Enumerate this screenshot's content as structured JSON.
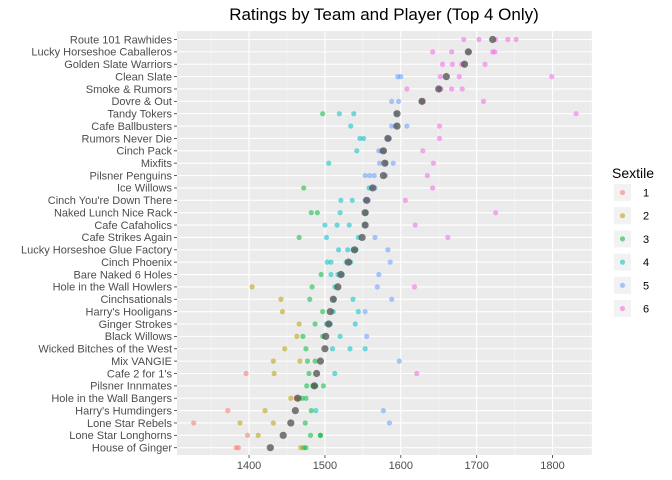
{
  "chart_data": {
    "type": "scatter",
    "title": "Ratings by Team and Player (Top 4 Only)",
    "xlabel": "",
    "ylabel": "",
    "xlim": [
      1305,
      1852
    ],
    "x_ticks": [
      1400,
      1500,
      1600,
      1700,
      1800
    ],
    "x_tick_labels": [
      "1400",
      "1500",
      "1600",
      "1700",
      "1800"
    ],
    "grid": true,
    "legend": {
      "title": "Sextile",
      "placement": "right",
      "entries": [
        {
          "label": "1",
          "color": "#F8766D"
        },
        {
          "label": "2",
          "color": "#B79F00"
        },
        {
          "label": "3",
          "color": "#00BA38"
        },
        {
          "label": "4",
          "color": "#00BFC4"
        },
        {
          "label": "5",
          "color": "#619CFF"
        },
        {
          "label": "6",
          "color": "#F564E3"
        }
      ]
    },
    "mean_color": "#595959",
    "teams": [
      {
        "name": "Route 101 Rawhides",
        "mean": 1721,
        "points": [
          [
            1683,
            6
          ],
          [
            1703,
            6
          ],
          [
            1725,
            6
          ],
          [
            1741,
            6
          ],
          [
            1752,
            6
          ]
        ]
      },
      {
        "name": "Lucky Horseshoe Caballeros",
        "mean": 1689,
        "points": [
          [
            1642,
            6
          ],
          [
            1667,
            6
          ],
          [
            1690,
            6
          ],
          [
            1721,
            6
          ],
          [
            1724,
            6
          ]
        ]
      },
      {
        "name": "Golden Slate Warriors",
        "mean": 1684,
        "points": [
          [
            1655,
            6
          ],
          [
            1668,
            6
          ],
          [
            1680,
            6
          ],
          [
            1683,
            6
          ],
          [
            1711,
            6
          ]
        ]
      },
      {
        "name": "Clean Slate",
        "mean": 1660,
        "points": [
          [
            1596,
            5
          ],
          [
            1600,
            5
          ],
          [
            1652,
            6
          ],
          [
            1677,
            6
          ],
          [
            1799,
            6
          ]
        ]
      },
      {
        "name": "Smoke & Rumors",
        "mean": 1650,
        "points": [
          [
            1608,
            6
          ],
          [
            1651,
            6
          ],
          [
            1653,
            6
          ],
          [
            1667,
            6
          ],
          [
            1681,
            6
          ]
        ]
      },
      {
        "name": "Dovre & Out",
        "mean": 1628,
        "points": [
          [
            1588,
            5
          ],
          [
            1597,
            5
          ],
          [
            1627,
            6
          ],
          [
            1629,
            6
          ],
          [
            1709,
            6
          ]
        ]
      },
      {
        "name": "Tandy Tokers",
        "mean": 1595,
        "points": [
          [
            1497,
            3
          ],
          [
            1519,
            4
          ],
          [
            1538,
            4
          ],
          [
            1594,
            5
          ],
          [
            1831,
            6
          ]
        ]
      },
      {
        "name": "Cafe Ballbusters",
        "mean": 1595,
        "points": [
          [
            1534,
            4
          ],
          [
            1588,
            5
          ],
          [
            1593,
            5
          ],
          [
            1608,
            5
          ],
          [
            1651,
            6
          ]
        ]
      },
      {
        "name": "Rumors Never Die",
        "mean": 1583,
        "points": [
          [
            1546,
            4
          ],
          [
            1551,
            4
          ],
          [
            1582,
            5
          ],
          [
            1585,
            5
          ],
          [
            1651,
            6
          ]
        ]
      },
      {
        "name": "Cinch Pack",
        "mean": 1577,
        "points": [
          [
            1542,
            4
          ],
          [
            1571,
            5
          ],
          [
            1574,
            5
          ],
          [
            1578,
            5
          ],
          [
            1629,
            6
          ]
        ]
      },
      {
        "name": "Mixfits",
        "mean": 1579,
        "points": [
          [
            1505,
            4
          ],
          [
            1572,
            5
          ],
          [
            1580,
            5
          ],
          [
            1590,
            5
          ],
          [
            1643,
            6
          ]
        ]
      },
      {
        "name": "Pilsner Penguins",
        "mean": 1577,
        "points": [
          [
            1553,
            5
          ],
          [
            1559,
            5
          ],
          [
            1565,
            5
          ],
          [
            1580,
            5
          ],
          [
            1635,
            6
          ]
        ]
      },
      {
        "name": "Ice Willows",
        "mean": 1563,
        "points": [
          [
            1472,
            3
          ],
          [
            1558,
            4
          ],
          [
            1561,
            5
          ],
          [
            1566,
            5
          ],
          [
            1642,
            6
          ]
        ]
      },
      {
        "name": "Cinch You're Down There",
        "mean": 1555,
        "points": [
          [
            1521,
            4
          ],
          [
            1536,
            4
          ],
          [
            1553,
            5
          ],
          [
            1557,
            5
          ],
          [
            1606,
            6
          ]
        ]
      },
      {
        "name": "Naked Lunch Nice Rack",
        "mean": 1553,
        "points": [
          [
            1482,
            3
          ],
          [
            1490,
            3
          ],
          [
            1520,
            4
          ],
          [
            1554,
            4
          ],
          [
            1725,
            6
          ]
        ]
      },
      {
        "name": "Cafe Cafaholics",
        "mean": 1553,
        "points": [
          [
            1500,
            4
          ],
          [
            1516,
            4
          ],
          [
            1532,
            4
          ],
          [
            1553,
            5
          ],
          [
            1619,
            6
          ]
        ]
      },
      {
        "name": "Cafe Strikes Again",
        "mean": 1549,
        "points": [
          [
            1466,
            3
          ],
          [
            1502,
            4
          ],
          [
            1544,
            4
          ],
          [
            1566,
            5
          ],
          [
            1662,
            6
          ]
        ]
      },
      {
        "name": "Lucky Horseshoe Glue Factory",
        "mean": 1539,
        "points": [
          [
            1518,
            4
          ],
          [
            1530,
            4
          ],
          [
            1537,
            4
          ],
          [
            1541,
            4
          ],
          [
            1583,
            5
          ]
        ]
      },
      {
        "name": "Cinch Phoenix",
        "mean": 1531,
        "points": [
          [
            1503,
            4
          ],
          [
            1508,
            4
          ],
          [
            1528,
            4
          ],
          [
            1534,
            4
          ],
          [
            1586,
            5
          ]
        ]
      },
      {
        "name": "Bare Naked 6 Holes",
        "mean": 1521,
        "points": [
          [
            1495,
            3
          ],
          [
            1508,
            4
          ],
          [
            1517,
            4
          ],
          [
            1523,
            4
          ],
          [
            1571,
            5
          ]
        ]
      },
      {
        "name": "Hole in the Wall Howlers",
        "mean": 1517,
        "points": [
          [
            1404,
            2
          ],
          [
            1483,
            3
          ],
          [
            1513,
            4
          ],
          [
            1569,
            5
          ],
          [
            1618,
            6
          ]
        ]
      },
      {
        "name": "Cinchsationals",
        "mean": 1511,
        "points": [
          [
            1442,
            2
          ],
          [
            1480,
            3
          ],
          [
            1512,
            4
          ],
          [
            1537,
            4
          ],
          [
            1588,
            5
          ]
        ]
      },
      {
        "name": "Harry's Hooligans",
        "mean": 1507,
        "points": [
          [
            1444,
            2
          ],
          [
            1497,
            3
          ],
          [
            1511,
            4
          ],
          [
            1544,
            4
          ],
          [
            1553,
            5
          ]
        ]
      },
      {
        "name": "Ginger Strokes",
        "mean": 1505,
        "points": [
          [
            1466,
            2
          ],
          [
            1487,
            3
          ],
          [
            1502,
            4
          ],
          [
            1507,
            4
          ],
          [
            1540,
            4
          ]
        ]
      },
      {
        "name": "Black Willows",
        "mean": 1501,
        "points": [
          [
            1463,
            2
          ],
          [
            1471,
            3
          ],
          [
            1497,
            3
          ],
          [
            1520,
            4
          ],
          [
            1555,
            5
          ]
        ]
      },
      {
        "name": "Wicked Bitches of the West",
        "mean": 1500,
        "points": [
          [
            1447,
            2
          ],
          [
            1475,
            3
          ],
          [
            1510,
            4
          ],
          [
            1533,
            4
          ],
          [
            1553,
            4
          ]
        ]
      },
      {
        "name": "Mix VANGIE",
        "mean": 1494,
        "points": [
          [
            1432,
            2
          ],
          [
            1467,
            2
          ],
          [
            1477,
            3
          ],
          [
            1487,
            3
          ],
          [
            1598,
            5
          ]
        ]
      },
      {
        "name": "Cafe 2 for 1's",
        "mean": 1489,
        "points": [
          [
            1396,
            1
          ],
          [
            1433,
            2
          ],
          [
            1479,
            3
          ],
          [
            1513,
            4
          ],
          [
            1621,
            6
          ]
        ]
      },
      {
        "name": "Pilsner Innmates",
        "mean": 1486,
        "points": [
          [
            1476,
            3
          ],
          [
            1484,
            3
          ],
          [
            1486,
            3
          ],
          [
            1488,
            3
          ],
          [
            1498,
            3
          ]
        ]
      },
      {
        "name": "Hole in the Wall Bangers",
        "mean": 1464,
        "points": [
          [
            1455,
            2
          ],
          [
            1462,
            1
          ],
          [
            1466,
            2
          ],
          [
            1470,
            3
          ],
          [
            1475,
            3
          ]
        ]
      },
      {
        "name": "Harry's Humdingers",
        "mean": 1461,
        "points": [
          [
            1372,
            1
          ],
          [
            1421,
            2
          ],
          [
            1482,
            3
          ],
          [
            1488,
            4
          ],
          [
            1577,
            5
          ]
        ]
      },
      {
        "name": "Lone Star Rebels",
        "mean": 1455,
        "points": [
          [
            1327,
            1
          ],
          [
            1388,
            2
          ],
          [
            1432,
            2
          ],
          [
            1474,
            3
          ],
          [
            1585,
            5
          ]
        ]
      },
      {
        "name": "Lone Star Longhorns",
        "mean": 1445,
        "points": [
          [
            1398,
            1
          ],
          [
            1412,
            2
          ],
          [
            1481,
            3
          ],
          [
            1494,
            3
          ],
          [
            1494,
            3
          ]
        ]
      },
      {
        "name": "House of Ginger",
        "mean": 1428,
        "points": [
          [
            1383,
            1
          ],
          [
            1386,
            1
          ],
          [
            1468,
            2
          ],
          [
            1472,
            3
          ],
          [
            1475,
            3
          ]
        ]
      }
    ]
  }
}
